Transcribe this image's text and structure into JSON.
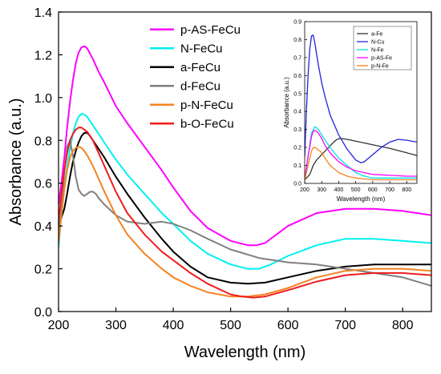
{
  "chart_data": [
    {
      "type": "line",
      "title": "",
      "xlabel": "Wavelength (nm)",
      "ylabel": "Absorbance (a.u.)",
      "xlim": [
        200,
        850
      ],
      "ylim": [
        0.0,
        1.4
      ],
      "xticks": [
        200,
        300,
        400,
        500,
        600,
        700,
        800
      ],
      "yticks": [
        0.0,
        0.2,
        0.4,
        0.6,
        0.8,
        1.0,
        1.2,
        1.4
      ],
      "xtick_labels": [
        "200",
        "300",
        "400",
        "500",
        "600",
        "700",
        "800"
      ],
      "ytick_labels": [
        "0.0",
        "0.2",
        "0.4",
        "0.6",
        "0.8",
        "1.0",
        "1.2",
        "1.4"
      ],
      "grid": false,
      "legend_position": "top-right",
      "series": [
        {
          "name": "p-AS-FeCu",
          "color": "#ff00ff",
          "x": [
            200,
            205,
            210,
            215,
            220,
            225,
            230,
            235,
            240,
            245,
            250,
            260,
            270,
            280,
            300,
            320,
            350,
            380,
            400,
            430,
            460,
            500,
            530,
            545,
            560,
            580,
            600,
            650,
            700,
            750,
            800,
            850
          ],
          "y": [
            0.5,
            0.6,
            0.72,
            0.86,
            0.98,
            1.08,
            1.16,
            1.21,
            1.235,
            1.24,
            1.23,
            1.18,
            1.12,
            1.07,
            0.96,
            0.88,
            0.77,
            0.66,
            0.58,
            0.47,
            0.39,
            0.33,
            0.31,
            0.31,
            0.32,
            0.36,
            0.4,
            0.46,
            0.48,
            0.48,
            0.47,
            0.45
          ]
        },
        {
          "name": "N-FeCu",
          "color": "#00f0f0",
          "x": [
            200,
            205,
            210,
            215,
            220,
            225,
            230,
            235,
            240,
            245,
            250,
            260,
            270,
            280,
            300,
            320,
            350,
            380,
            400,
            430,
            460,
            500,
            530,
            550,
            570,
            600,
            650,
            700,
            750,
            800,
            850
          ],
          "y": [
            0.3,
            0.45,
            0.58,
            0.68,
            0.76,
            0.83,
            0.88,
            0.91,
            0.925,
            0.92,
            0.91,
            0.87,
            0.83,
            0.79,
            0.71,
            0.64,
            0.55,
            0.46,
            0.41,
            0.33,
            0.27,
            0.22,
            0.2,
            0.2,
            0.22,
            0.26,
            0.31,
            0.34,
            0.34,
            0.33,
            0.32
          ]
        },
        {
          "name": "a-FeCu",
          "color": "#000000",
          "x": [
            200,
            205,
            210,
            215,
            220,
            225,
            230,
            235,
            240,
            245,
            250,
            255,
            260,
            270,
            280,
            300,
            320,
            350,
            380,
            400,
            430,
            460,
            500,
            530,
            560,
            600,
            650,
            700,
            750,
            800,
            850
          ],
          "y": [
            0.4,
            0.44,
            0.48,
            0.55,
            0.63,
            0.7,
            0.75,
            0.79,
            0.82,
            0.835,
            0.835,
            0.82,
            0.8,
            0.76,
            0.72,
            0.63,
            0.55,
            0.44,
            0.34,
            0.28,
            0.21,
            0.16,
            0.135,
            0.13,
            0.135,
            0.16,
            0.19,
            0.21,
            0.22,
            0.22,
            0.22
          ]
        },
        {
          "name": "d-FeCu",
          "color": "#808080",
          "x": [
            200,
            205,
            210,
            215,
            220,
            225,
            230,
            235,
            240,
            245,
            250,
            255,
            260,
            265,
            270,
            280,
            300,
            320,
            350,
            380,
            400,
            430,
            460,
            500,
            550,
            600,
            650,
            700,
            750,
            800,
            850
          ],
          "y": [
            0.35,
            0.48,
            0.65,
            0.77,
            0.8,
            0.73,
            0.63,
            0.57,
            0.55,
            0.54,
            0.55,
            0.56,
            0.56,
            0.55,
            0.53,
            0.5,
            0.45,
            0.42,
            0.41,
            0.42,
            0.41,
            0.38,
            0.34,
            0.29,
            0.25,
            0.23,
            0.22,
            0.2,
            0.18,
            0.16,
            0.12
          ]
        },
        {
          "name": "p-N-FeCu",
          "color": "#f58220",
          "x": [
            200,
            205,
            210,
            215,
            220,
            225,
            230,
            235,
            240,
            245,
            250,
            260,
            270,
            280,
            300,
            320,
            350,
            380,
            400,
            430,
            460,
            500,
            530,
            560,
            600,
            650,
            700,
            750,
            800,
            850
          ],
          "y": [
            0.32,
            0.45,
            0.57,
            0.66,
            0.72,
            0.75,
            0.765,
            0.77,
            0.765,
            0.75,
            0.73,
            0.68,
            0.62,
            0.56,
            0.45,
            0.36,
            0.27,
            0.2,
            0.16,
            0.12,
            0.09,
            0.07,
            0.07,
            0.08,
            0.11,
            0.16,
            0.19,
            0.2,
            0.2,
            0.19
          ]
        },
        {
          "name": "b-O-FeCu",
          "color": "#ee1c1c",
          "x": [
            200,
            205,
            210,
            215,
            220,
            225,
            230,
            235,
            240,
            245,
            250,
            260,
            270,
            280,
            300,
            320,
            350,
            380,
            400,
            430,
            460,
            500,
            520,
            540,
            560,
            600,
            650,
            700,
            750,
            800,
            850
          ],
          "y": [
            0.42,
            0.55,
            0.66,
            0.74,
            0.8,
            0.83,
            0.85,
            0.86,
            0.86,
            0.85,
            0.84,
            0.8,
            0.74,
            0.68,
            0.56,
            0.46,
            0.36,
            0.28,
            0.24,
            0.18,
            0.13,
            0.08,
            0.07,
            0.065,
            0.07,
            0.1,
            0.14,
            0.17,
            0.18,
            0.18,
            0.17
          ]
        }
      ]
    },
    {
      "type": "line",
      "title": "",
      "xlabel": "Wavelength (nm)",
      "ylabel": "Absorbance (a.u.)",
      "xlim": [
        200,
        860
      ],
      "ylim": [
        0.0,
        0.9
      ],
      "xticks": [
        200,
        300,
        400,
        500,
        600,
        700,
        800
      ],
      "yticks": [
        0.0,
        0.1,
        0.2,
        0.3,
        0.4,
        0.5,
        0.6,
        0.7,
        0.8,
        0.9
      ],
      "xtick_labels": [
        "200",
        "300",
        "400",
        "500",
        "600",
        "700",
        "800"
      ],
      "ytick_labels": [
        "0.0",
        "0.1",
        "0.2",
        "0.3",
        "0.4",
        "0.5",
        "0.6",
        "0.7",
        "0.8",
        "0.9"
      ],
      "grid": false,
      "legend_position": "top-right",
      "series": [
        {
          "name": "a-Fe",
          "color": "#333333",
          "x": [
            200,
            230,
            250,
            270,
            290,
            310,
            330,
            350,
            370,
            390,
            410,
            450,
            500,
            600,
            700,
            800,
            860
          ],
          "y": [
            0.02,
            0.05,
            0.1,
            0.13,
            0.15,
            0.17,
            0.19,
            0.21,
            0.23,
            0.245,
            0.25,
            0.245,
            0.235,
            0.215,
            0.195,
            0.17,
            0.155
          ]
        },
        {
          "name": "N-Cu",
          "color": "#2222dd",
          "x": [
            200,
            210,
            220,
            230,
            240,
            250,
            260,
            270,
            280,
            300,
            320,
            350,
            400,
            450,
            500,
            530,
            550,
            600,
            650,
            700,
            750,
            800,
            860
          ],
          "y": [
            0.15,
            0.4,
            0.6,
            0.75,
            0.82,
            0.825,
            0.78,
            0.72,
            0.66,
            0.56,
            0.48,
            0.38,
            0.27,
            0.19,
            0.13,
            0.115,
            0.12,
            0.16,
            0.2,
            0.23,
            0.245,
            0.24,
            0.23
          ]
        },
        {
          "name": "N-Fe",
          "color": "#00e0e0",
          "x": [
            200,
            220,
            240,
            260,
            270,
            280,
            300,
            320,
            350,
            400,
            450,
            500,
            550,
            600,
            700,
            800,
            860
          ],
          "y": [
            0.02,
            0.15,
            0.28,
            0.315,
            0.31,
            0.3,
            0.27,
            0.24,
            0.2,
            0.14,
            0.1,
            0.06,
            0.04,
            0.03,
            0.03,
            0.03,
            0.03
          ]
        },
        {
          "name": "p-AS-Fe",
          "color": "#ff00ff",
          "x": [
            200,
            220,
            240,
            250,
            260,
            270,
            280,
            300,
            320,
            350,
            400,
            450,
            500,
            550,
            600,
            700,
            800,
            860
          ],
          "y": [
            0.02,
            0.15,
            0.26,
            0.29,
            0.295,
            0.29,
            0.28,
            0.25,
            0.21,
            0.17,
            0.12,
            0.09,
            0.07,
            0.06,
            0.05,
            0.045,
            0.04,
            0.04
          ]
        },
        {
          "name": "p-N-Fe",
          "color": "#f58220",
          "x": [
            200,
            220,
            240,
            250,
            260,
            270,
            280,
            290,
            300,
            320,
            350,
            400,
            450,
            500,
            600,
            700,
            800,
            860
          ],
          "y": [
            0.02,
            0.1,
            0.18,
            0.2,
            0.2,
            0.195,
            0.185,
            0.18,
            0.17,
            0.14,
            0.1,
            0.06,
            0.04,
            0.03,
            0.02,
            0.02,
            0.02,
            0.02
          ]
        }
      ]
    }
  ]
}
